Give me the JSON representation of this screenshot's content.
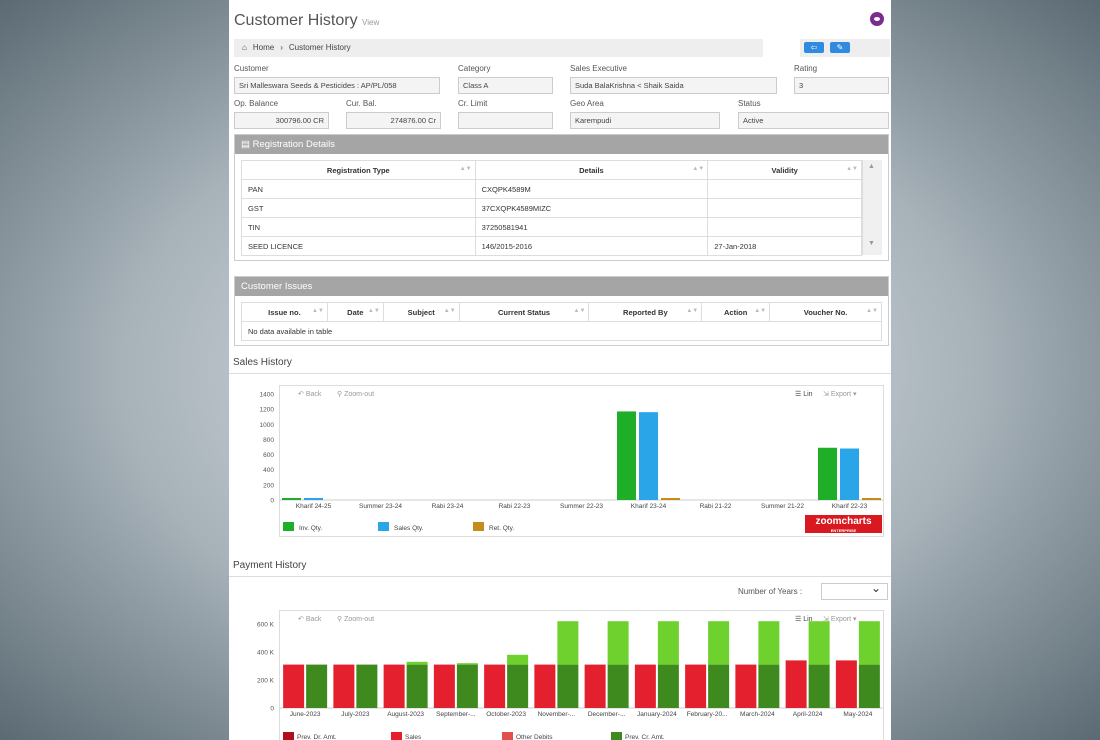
{
  "header": {
    "title": "Customer History",
    "subtitle": "View"
  },
  "breadcrumb": {
    "home": "Home",
    "sep": "›",
    "current": "Customer History"
  },
  "form": {
    "customer": {
      "label": "Customer",
      "value": "Sri Malleswara Seeds & Pesticides : AP/PL/058"
    },
    "category": {
      "label": "Category",
      "value": "Class A"
    },
    "sales_exec": {
      "label": "Sales Executive",
      "value": "Suda BalaKrishna < Shaik Saida"
    },
    "rating": {
      "label": "Rating",
      "value": "3"
    },
    "op_balance": {
      "label": "Op. Balance",
      "value": "300796.00 CR"
    },
    "cur_bal": {
      "label": "Cur. Bal.",
      "value": "274876.00 Cr"
    },
    "cr_limit": {
      "label": "Cr. Limit",
      "value": ""
    },
    "geo_area": {
      "label": "Geo Area",
      "value": "Karempudi"
    },
    "status": {
      "label": "Status",
      "value": "Active"
    }
  },
  "registration": {
    "title": "Registration Details",
    "headers": [
      "Registration Type",
      "Details",
      "Validity"
    ],
    "rows": [
      [
        "PAN",
        "CXQPK4589M",
        ""
      ],
      [
        "GST",
        "37CXQPK4589MIZC",
        ""
      ],
      [
        "TIN",
        "37250581941",
        ""
      ],
      [
        "SEED LICENCE",
        "146/2015-2016",
        "27-Jan-2018"
      ]
    ]
  },
  "issues": {
    "title": "Customer Issues",
    "headers": [
      "Issue no.",
      "Date",
      "Subject",
      "Current Status",
      "Reported By",
      "Action",
      "Voucher No."
    ],
    "empty": "No data available in table"
  },
  "controls": {
    "back": "Back",
    "zoom_out": "Zoom-out",
    "lin": "Lin",
    "export": "Export"
  },
  "sales_history": {
    "title": "Sales History"
  },
  "payment_history": {
    "title": "Payment History",
    "years_label": "Number of Years :"
  },
  "brand": {
    "name": "zoomcharts",
    "tag": "ENTERPRISE"
  },
  "colors": {
    "inv": "#1fae28",
    "sales": "#2aa6e8",
    "ret": "#c68c1a",
    "prev_dr": "#b0101a",
    "sales_pay": "#e4202e",
    "other_debits": "#e05050",
    "prev_cr": "#3f8a1e",
    "prev_cr_top": "#6ed12d"
  },
  "chart_data": [
    {
      "type": "bar",
      "categories": [
        "Kharif 24-25",
        "Summer 23-24",
        "Rabi 23-24",
        "Rabi 22-23",
        "Summer 22-23",
        "Kharif 23-24",
        "Rabi 21-22",
        "Summer 21-22",
        "Kharif 22-23"
      ],
      "yticks": [
        "0",
        "200",
        "400",
        "600",
        "800",
        "1000",
        "1200",
        "1400"
      ],
      "ylim": [
        0,
        1400
      ],
      "legend": [
        "Inv. Qty.",
        "Sales Qty.",
        "Ret. Qty."
      ],
      "series": [
        {
          "name": "Inv. Qty.",
          "values": [
            25,
            0,
            0,
            0,
            0,
            1170,
            0,
            0,
            690
          ]
        },
        {
          "name": "Sales Qty.",
          "values": [
            25,
            0,
            0,
            0,
            0,
            1160,
            0,
            0,
            680
          ]
        },
        {
          "name": "Ret. Qty.",
          "values": [
            0,
            0,
            0,
            0,
            0,
            15,
            0,
            0,
            15
          ]
        }
      ]
    },
    {
      "type": "bar",
      "categories": [
        "June-2023",
        "July-2023",
        "August-2023",
        "September-...",
        "October-2023",
        "November-...",
        "December-...",
        "January-2024",
        "February-20...",
        "March-2024",
        "April-2024",
        "May-2024"
      ],
      "yticks": [
        "0",
        "200 K",
        "400 K",
        "600 K"
      ],
      "ylim": [
        0,
        600000
      ],
      "legend": [
        "Prev. Dr. Amt.",
        "Sales",
        "Other Debits",
        "Prev. Cr. Amt."
      ],
      "series": [
        {
          "name": "Sales",
          "values": [
            310000,
            310000,
            310000,
            310000,
            310000,
            310000,
            310000,
            310000,
            310000,
            310000,
            340000,
            340000
          ]
        },
        {
          "name": "Prev. Cr. Amt.",
          "values": [
            310000,
            310000,
            330000,
            320000,
            380000,
            620000,
            620000,
            620000,
            620000,
            620000,
            620000,
            620000
          ]
        }
      ]
    }
  ]
}
